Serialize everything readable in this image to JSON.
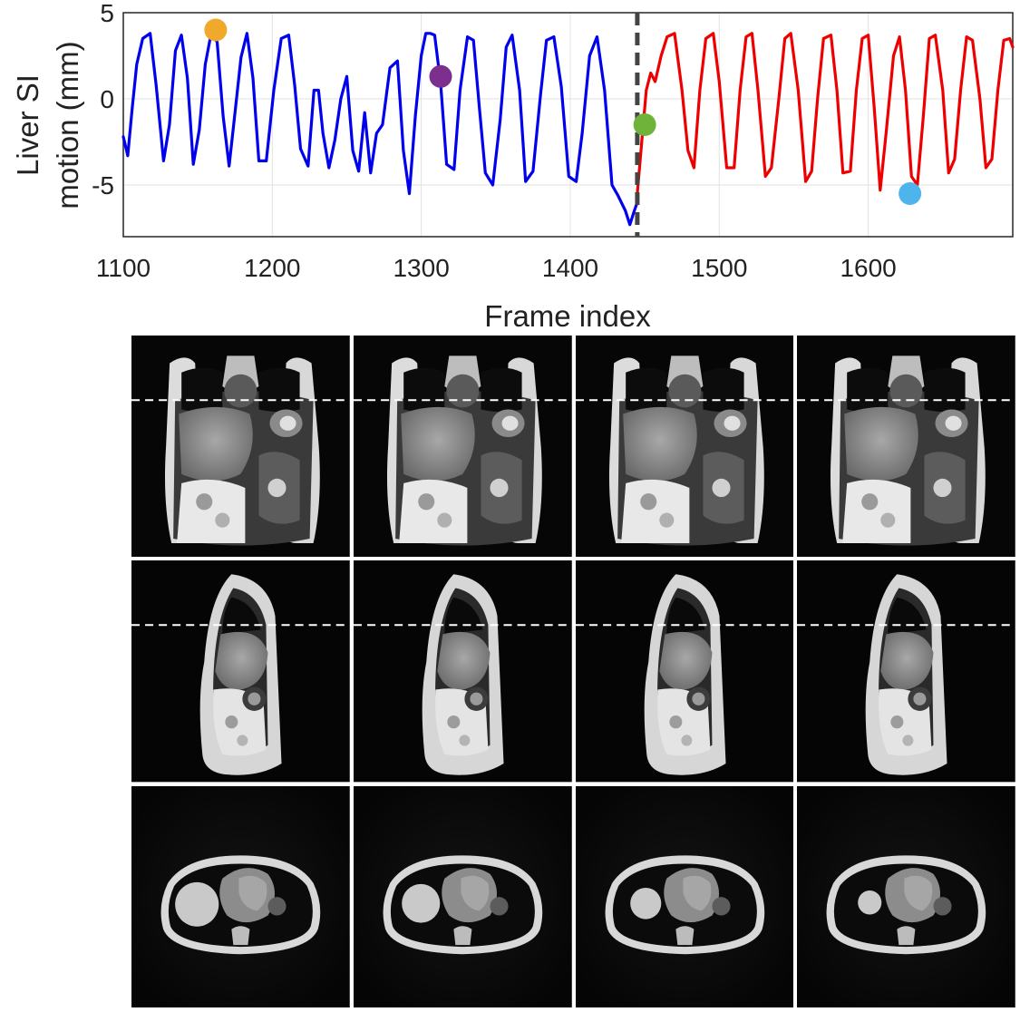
{
  "chart_data": {
    "type": "line",
    "xlabel": "Frame index",
    "ylabel_lines": [
      "Liver SI",
      "motion (mm)"
    ],
    "xlim": [
      1100,
      1697
    ],
    "ylim": [
      -8,
      5
    ],
    "xticks": [
      1100,
      1200,
      1300,
      1400,
      1500,
      1600
    ],
    "yticks": [
      5,
      0,
      -5
    ],
    "ytick_labels": [
      "5",
      "0",
      "-5"
    ],
    "grid": true,
    "divider_x": 1445,
    "series": [
      {
        "color": "#0000ee",
        "x": [
          1100,
          1103,
          1106,
          1109,
          1113,
          1118,
          1122,
          1127,
          1131,
          1135,
          1139,
          1143,
          1147,
          1151,
          1155,
          1159,
          1163,
          1167,
          1171,
          1175,
          1179,
          1183,
          1187,
          1191,
          1196,
          1201,
          1206,
          1211,
          1215,
          1219,
          1224,
          1228,
          1231,
          1234,
          1238,
          1242,
          1246,
          1250,
          1254,
          1258,
          1262,
          1266,
          1270,
          1274,
          1279,
          1284,
          1288,
          1292,
          1296,
          1300,
          1303,
          1306,
          1309,
          1313,
          1317,
          1322,
          1326,
          1331,
          1335,
          1339,
          1343,
          1348,
          1353,
          1357,
          1361,
          1366,
          1370,
          1375,
          1380,
          1384,
          1389,
          1394,
          1399,
          1404,
          1408,
          1413,
          1418,
          1423,
          1428,
          1432,
          1437,
          1440,
          1443,
          1445
        ],
        "y": [
          -2.2,
          -3.3,
          -0.5,
          2.0,
          3.5,
          3.8,
          0.8,
          -3.6,
          -1.5,
          2.8,
          3.7,
          1.2,
          -3.8,
          -1.8,
          2.0,
          3.8,
          3.3,
          -1.0,
          -3.9,
          -0.8,
          2.4,
          3.8,
          1.2,
          -3.6,
          -3.6,
          0.5,
          3.5,
          3.7,
          0.8,
          -2.9,
          -3.9,
          0.5,
          0.5,
          -2.0,
          -4.0,
          -2.4,
          0.0,
          1.3,
          -3.0,
          -4.2,
          -0.8,
          -4.3,
          -2.0,
          -1.5,
          1.8,
          2.2,
          -3.0,
          -5.5,
          -1.0,
          2.5,
          3.8,
          3.8,
          3.7,
          0.9,
          -3.8,
          -4.1,
          0.5,
          3.6,
          3.4,
          -0.5,
          -4.3,
          -5.0,
          -1.2,
          3.0,
          3.7,
          0.5,
          -4.8,
          -4.2,
          0.2,
          3.4,
          3.6,
          0.7,
          -4.5,
          -4.8,
          -2.0,
          2.5,
          3.6,
          0.5,
          -5.0,
          -5.6,
          -6.5,
          -7.3,
          -6.5,
          -6.0
        ]
      },
      {
        "color": "#ee0000",
        "x": [
          1445,
          1448,
          1451,
          1454,
          1457,
          1461,
          1465,
          1470,
          1475,
          1479,
          1483,
          1487,
          1491,
          1496,
          1500,
          1505,
          1510,
          1514,
          1518,
          1522,
          1526,
          1531,
          1535,
          1540,
          1544,
          1548,
          1553,
          1558,
          1562,
          1566,
          1570,
          1575,
          1579,
          1583,
          1588,
          1592,
          1596,
          1600,
          1604,
          1608,
          1612,
          1617,
          1621,
          1625,
          1629,
          1633,
          1637,
          1641,
          1645,
          1650,
          1654,
          1658,
          1662,
          1666,
          1670,
          1675,
          1679,
          1683,
          1687,
          1691,
          1695,
          1697
        ],
        "y": [
          -5.5,
          -2.5,
          0.5,
          1.5,
          1.0,
          2.5,
          3.6,
          3.8,
          0.5,
          -3.0,
          -4.0,
          0.5,
          3.5,
          3.8,
          1.0,
          -4.0,
          -4.0,
          0.5,
          3.6,
          3.8,
          0.5,
          -4.5,
          -4.0,
          0.0,
          3.5,
          3.8,
          0.5,
          -4.8,
          -4.2,
          0.0,
          3.5,
          3.7,
          0.5,
          -4.3,
          -4.2,
          0.5,
          3.5,
          3.7,
          -0.5,
          -5.3,
          -2.0,
          2.5,
          3.6,
          0.5,
          -4.5,
          -5.0,
          -1.0,
          3.5,
          3.7,
          0.5,
          -4.3,
          -3.5,
          0.5,
          3.6,
          3.4,
          0.0,
          -4.0,
          -3.5,
          0.5,
          3.4,
          3.5,
          3.0
        ]
      }
    ],
    "markers": [
      {
        "x": 1162,
        "y": 4.0,
        "color": "#f0a92a"
      },
      {
        "x": 1313,
        "y": 1.3,
        "color": "#7c2f8c"
      },
      {
        "x": 1450,
        "y": -1.5,
        "color": "#6fb33a"
      },
      {
        "x": 1628,
        "y": -5.5,
        "color": "#4db5ec"
      }
    ]
  },
  "image_grid": {
    "rows": [
      "coronal",
      "sagittal",
      "axial"
    ],
    "columns": 4,
    "marker_colors": [
      "#f0a92a",
      "#7c2f8c",
      "#6fb33a",
      "#4db5ec"
    ]
  }
}
